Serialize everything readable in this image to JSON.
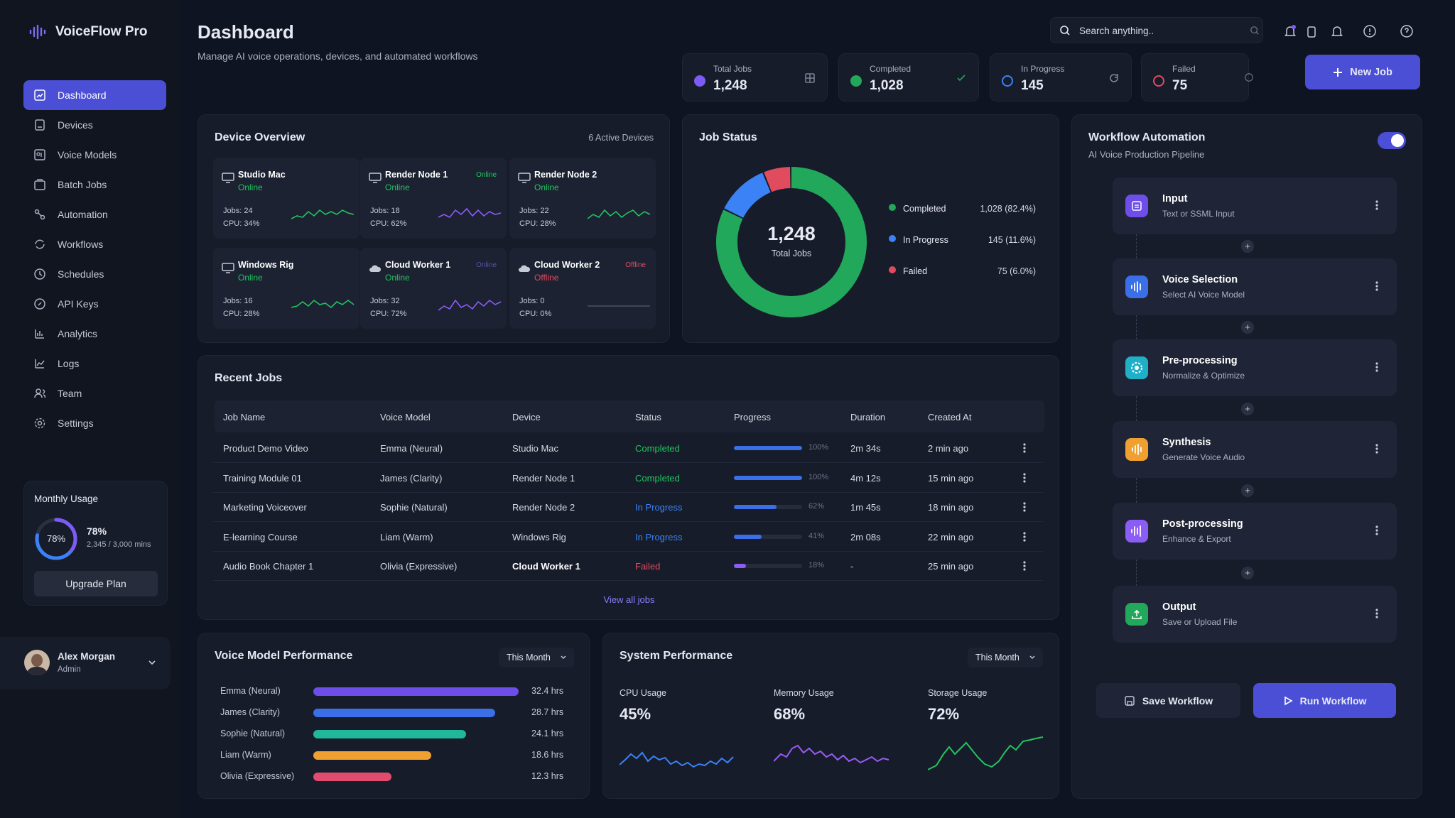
{
  "app": {
    "name": "VoiceFlow Pro"
  },
  "sidebar": {
    "items": [
      {
        "label": "Dashboard"
      },
      {
        "label": "Devices"
      },
      {
        "label": "Voice Models"
      },
      {
        "label": "Batch Jobs"
      },
      {
        "label": "Automation"
      },
      {
        "label": "Workflows"
      },
      {
        "label": "Schedules"
      },
      {
        "label": "API Keys"
      },
      {
        "label": "Analytics"
      },
      {
        "label": "Logs"
      },
      {
        "label": "Team"
      },
      {
        "label": "Settings"
      }
    ],
    "usage": {
      "title": "Monthly Usage",
      "percent_label": "78%",
      "percent": 78,
      "detail": "2,345 / 3,000 mins",
      "button": "Upgrade Plan"
    },
    "user": {
      "name": "Alex Morgan",
      "role": "Admin"
    }
  },
  "header": {
    "title": "Dashboard",
    "subtitle": "Manage AI voice operations, devices, and automated workflows",
    "search_placeholder": "Search anything..",
    "new_job": "New Job"
  },
  "stats": [
    {
      "label": "Total Jobs",
      "value": "1,248",
      "color": "#7c5cf5"
    },
    {
      "label": "Completed",
      "value": "1,028",
      "color": "#22a85a"
    },
    {
      "label": "In Progress",
      "value": "145",
      "color": "#3b82f6"
    },
    {
      "label": "Failed",
      "value": "75",
      "color": "#e04c5e"
    }
  ],
  "devices": {
    "title": "Device Overview",
    "count": "6 Active Devices",
    "items": [
      {
        "name": "Studio Mac",
        "status": "Online",
        "jobs": "Jobs: 24",
        "cpu": "CPU: 34%",
        "tag": ""
      },
      {
        "name": "Render Node 1",
        "status": "Online",
        "jobs": "Jobs: 18",
        "cpu": "CPU: 62%",
        "tag": "Online"
      },
      {
        "name": "Render Node 2",
        "status": "Online",
        "jobs": "Jobs: 22",
        "cpu": "CPU: 28%",
        "tag": ""
      },
      {
        "name": "Windows Rig",
        "status": "Online",
        "jobs": "Jobs: 16",
        "cpu": "CPU: 28%",
        "tag": ""
      },
      {
        "name": "Cloud Worker 1",
        "status": "Online",
        "jobs": "Jobs: 32",
        "cpu": "CPU: 72%",
        "tag": "Online"
      },
      {
        "name": "Cloud Worker 2",
        "status": "Offline",
        "jobs": "Jobs: 0",
        "cpu": "CPU: 0%",
        "tag": "Offline"
      }
    ]
  },
  "job_status": {
    "title": "Job Status",
    "total": "1,248",
    "total_label": "Total Jobs",
    "legend": [
      {
        "label": "Completed",
        "value": "1,028 (82.4%)",
        "color": "#22a85a",
        "pct": 82.4
      },
      {
        "label": "In Progress",
        "value": "145 (11.6%)",
        "color": "#3b82f6",
        "pct": 11.6
      },
      {
        "label": "Failed",
        "value": "75 (6.0%)",
        "color": "#e04c5e",
        "pct": 6.0
      }
    ]
  },
  "recent_jobs": {
    "title": "Recent Jobs",
    "columns": [
      "Job Name",
      "Voice Model",
      "Device",
      "Status",
      "Progress",
      "Duration",
      "Created At"
    ],
    "rows": [
      {
        "name": "Product Demo Video",
        "model": "Emma (Neural)",
        "device": "Studio Mac",
        "status": "Completed",
        "progress": 100,
        "progress_label": "100%",
        "duration": "2m 34s",
        "created": "2 min ago"
      },
      {
        "name": "Training Module 01",
        "model": "James (Clarity)",
        "device": "Render Node 1",
        "status": "Completed",
        "progress": 100,
        "progress_label": "100%",
        "duration": "4m 12s",
        "created": "15 min ago"
      },
      {
        "name": "Marketing Voiceover",
        "model": "Sophie (Natural)",
        "device": "Render Node 2",
        "status": "In Progress",
        "progress": 62,
        "progress_label": "62%",
        "duration": "1m 45s",
        "created": "18 min ago"
      },
      {
        "name": "E-learning Course",
        "model": "Liam (Warm)",
        "device": "Windows Rig",
        "status": "In Progress",
        "progress": 41,
        "progress_label": "41%",
        "duration": "2m 08s",
        "created": "22 min ago"
      },
      {
        "name": "Audio Book Chapter 1",
        "model": "Olivia (Expressive)",
        "device": "Cloud Worker 1",
        "status": "Failed",
        "progress": 18,
        "progress_label": "18%",
        "duration": "-",
        "created": "25 min ago"
      }
    ],
    "view_all": "View all jobs"
  },
  "voice_perf": {
    "title": "Voice Model Performance",
    "period": "This Month",
    "items": [
      {
        "name": "Emma (Neural)",
        "value": 32.4,
        "label": "32.4 hrs",
        "color": "#6d4ee8"
      },
      {
        "name": "James (Clarity)",
        "value": 28.7,
        "label": "28.7 hrs",
        "color": "#3b6fe8"
      },
      {
        "name": "Sophie (Natural)",
        "value": 24.1,
        "label": "24.1 hrs",
        "color": "#1fb89a"
      },
      {
        "name": "Liam (Warm)",
        "value": 18.6,
        "label": "18.6 hrs",
        "color": "#f0a030"
      },
      {
        "name": "Olivia (Expressive)",
        "value": 12.3,
        "label": "12.3 hrs",
        "color": "#e04c6e"
      }
    ]
  },
  "system_perf": {
    "title": "System Performance",
    "period": "This Month",
    "metrics": [
      {
        "label": "CPU Usage",
        "value": "45%",
        "color": "#3b82f6"
      },
      {
        "label": "Memory Usage",
        "value": "68%",
        "color": "#9b5cf5"
      },
      {
        "label": "Storage Usage",
        "value": "72%",
        "color": "#22c55e"
      }
    ]
  },
  "workflow": {
    "title": "Workflow Automation",
    "subtitle": "AI Voice Production Pipeline",
    "steps": [
      {
        "title": "Input",
        "desc": "Text or SSML Input",
        "color": "#6d4ee8"
      },
      {
        "title": "Voice Selection",
        "desc": "Select AI Voice Model",
        "color": "#3b6fe8"
      },
      {
        "title": "Pre-processing",
        "desc": "Normalize & Optimize",
        "color": "#1fb0c8"
      },
      {
        "title": "Synthesis",
        "desc": "Generate Voice Audio",
        "color": "#f0a030"
      },
      {
        "title": "Post-processing",
        "desc": "Enhance & Export",
        "color": "#8b5cf6"
      },
      {
        "title": "Output",
        "desc": "Save or Upload File",
        "color": "#22a85a"
      }
    ],
    "save": "Save Workflow",
    "run": "Run Workflow"
  }
}
